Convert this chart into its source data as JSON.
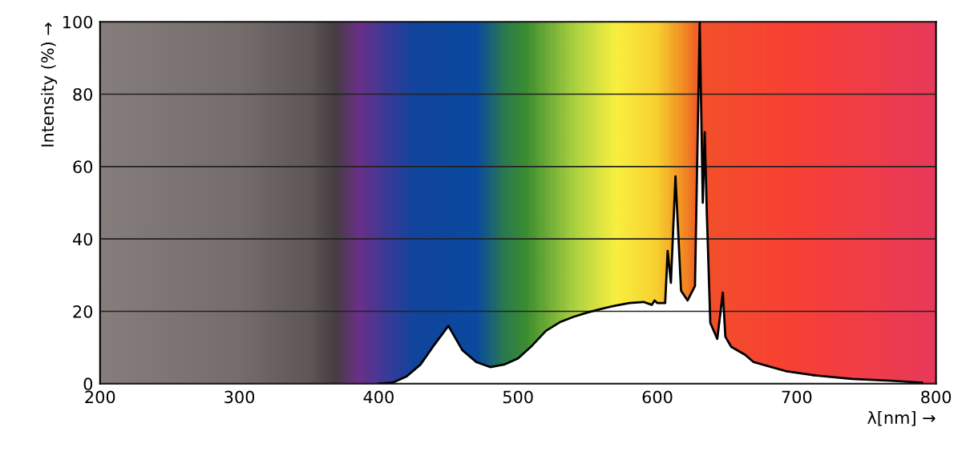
{
  "chart_data": {
    "type": "area",
    "xlabel": "λ[nm] →",
    "ylabel": "Intensity (%) →",
    "xlim": [
      200,
      800
    ],
    "ylim": [
      0,
      100
    ],
    "xticks": [
      200,
      300,
      400,
      500,
      600,
      700,
      800
    ],
    "yticks": [
      0,
      20,
      40,
      60,
      80,
      100
    ],
    "grid": "y",
    "legend": false,
    "series": [
      {
        "color": "#000000",
        "x": [
          400,
          410,
          420,
          430,
          440,
          450,
          460,
          470,
          480,
          490,
          500,
          510,
          520,
          530,
          540,
          550,
          560,
          570,
          580,
          590,
          596,
          598,
          600,
          605.6,
          607.4,
          609.7,
          613,
          617,
          621.7,
          627,
          630.4,
          632.6,
          634,
          635.5,
          638,
          643,
          647,
          648.8,
          653,
          663,
          669,
          680,
          692,
          711,
          740,
          768,
          790
        ],
        "values": [
          0,
          0.3,
          2,
          5.3,
          10.8,
          16,
          9.3,
          6,
          4.6,
          5.3,
          7,
          10.5,
          14.6,
          17,
          18.5,
          19.7,
          20.7,
          21.6,
          22.3,
          22.6,
          21.8,
          23,
          22.3,
          22.3,
          36.7,
          27.9,
          57.3,
          25.7,
          23,
          27,
          100,
          50,
          69.5,
          47,
          16.8,
          12.4,
          25.2,
          13,
          10.2,
          8,
          6,
          4.8,
          3.5,
          2.4,
          1.3,
          0.8,
          0.3
        ]
      }
    ]
  }
}
